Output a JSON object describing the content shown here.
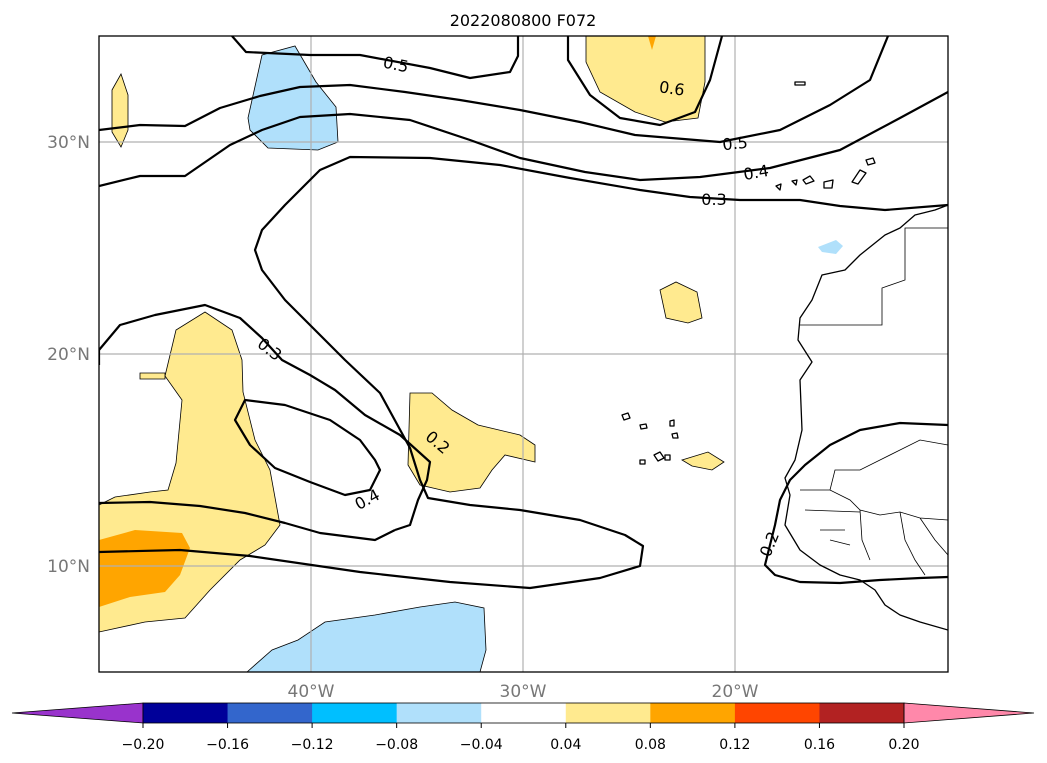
{
  "title": "2022080800 F072",
  "map": {
    "lat_labels": [
      "30°N",
      "20°N",
      "10°N"
    ],
    "lon_labels": [
      "40°W",
      "30°W",
      "20°W"
    ],
    "extent_lon": [
      -50,
      -10
    ],
    "extent_lat": [
      5,
      35
    ],
    "gridlines": true
  },
  "contour_labels": [
    {
      "text": "0.5"
    },
    {
      "text": "0.6"
    },
    {
      "text": "0.5"
    },
    {
      "text": "0.4"
    },
    {
      "text": "0.3"
    },
    {
      "text": "0.3"
    },
    {
      "text": "0.2"
    },
    {
      "text": "0.4"
    },
    {
      "text": "0.2"
    }
  ],
  "colorbar": {
    "extend": "both",
    "ticks": [
      "−0.20",
      "−0.16",
      "−0.12",
      "−0.08",
      "−0.04",
      "0.04",
      "0.08",
      "0.12",
      "0.16",
      "0.20"
    ],
    "colors": {
      "below": "#9933cc",
      "bins": [
        "#000099",
        "#3366cc",
        "#00bfff",
        "#b0e0fb",
        "#ffffff",
        "#ffea8f",
        "#ffa500",
        "#ff4500",
        "#b22222"
      ],
      "above": "#ff88aa"
    }
  },
  "fill_colors": {
    "light_yellow": "#ffea8f",
    "orange": "#ffa500",
    "light_blue": "#b0e0fb"
  }
}
